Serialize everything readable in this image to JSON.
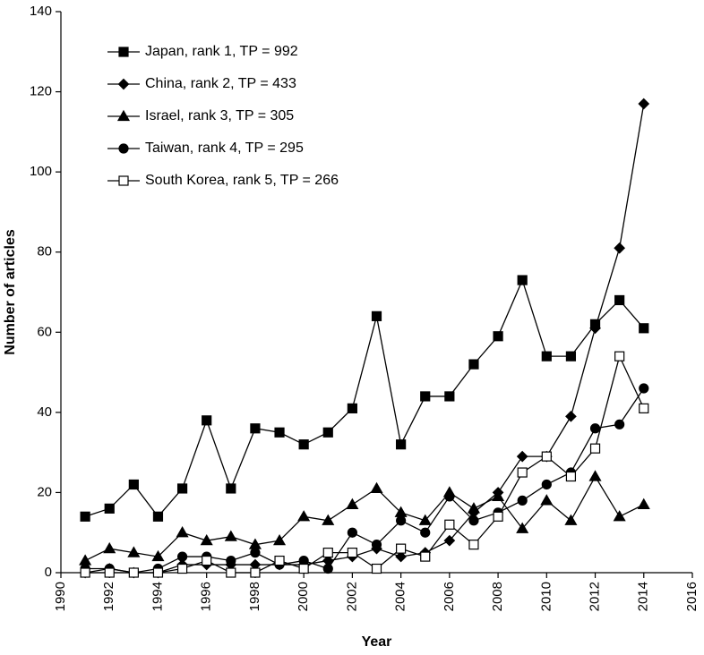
{
  "chart_data": {
    "type": "line",
    "title": "",
    "xlabel": "Year",
    "ylabel": "Number of articles",
    "xlim": [
      1990,
      2016
    ],
    "ylim": [
      0,
      140
    ],
    "x_ticks": [
      "1990",
      "1992",
      "1994",
      "1996",
      "1998",
      "2000",
      "2002",
      "2004",
      "2006",
      "2008",
      "2010",
      "2012",
      "2014",
      "2016"
    ],
    "y_ticks": [
      "0",
      "20",
      "40",
      "60",
      "80",
      "100",
      "120",
      "140"
    ],
    "grid": false,
    "legend_position": "top-left",
    "x": [
      1991,
      1992,
      1993,
      1994,
      1995,
      1996,
      1997,
      1998,
      1999,
      2000,
      2001,
      2002,
      2003,
      2004,
      2005,
      2006,
      2007,
      2008,
      2009,
      2010,
      2011,
      2012,
      2013,
      2014
    ],
    "series": [
      {
        "name": "Japan, rank 1, TP = 992",
        "marker": "filled-square",
        "values": [
          14,
          16,
          22,
          14,
          21,
          38,
          21,
          36,
          35,
          32,
          35,
          41,
          64,
          32,
          44,
          44,
          52,
          59,
          73,
          54,
          54,
          62,
          68,
          61
        ]
      },
      {
        "name": "China, rank 2, TP = 433",
        "marker": "filled-diamond",
        "values": [
          0,
          1,
          0,
          0,
          2,
          2,
          2,
          2,
          2,
          2,
          3,
          4,
          6,
          4,
          5,
          8,
          15,
          20,
          29,
          29,
          39,
          61,
          81,
          117
        ]
      },
      {
        "name": "Israel, rank 3, TP = 305",
        "marker": "filled-triangle",
        "values": [
          3,
          6,
          5,
          4,
          10,
          8,
          9,
          7,
          8,
          14,
          13,
          17,
          21,
          15,
          13,
          20,
          16,
          19,
          11,
          18,
          13,
          24,
          14,
          17
        ]
      },
      {
        "name": "Taiwan, rank 4, TP = 295",
        "marker": "filled-circle",
        "values": [
          1,
          1,
          0,
          1,
          4,
          4,
          3,
          5,
          2,
          3,
          1,
          10,
          7,
          13,
          10,
          19,
          13,
          15,
          18,
          22,
          25,
          36,
          37,
          46
        ]
      },
      {
        "name": "South Korea, rank 5, TP = 266",
        "marker": "open-square",
        "values": [
          0,
          0,
          0,
          0,
          1,
          3,
          0,
          0,
          3,
          1,
          5,
          5,
          1,
          6,
          4,
          12,
          7,
          14,
          25,
          29,
          24,
          31,
          54,
          41
        ]
      }
    ],
    "colors": {
      "line": "#000000",
      "background": "#ffffff"
    }
  }
}
